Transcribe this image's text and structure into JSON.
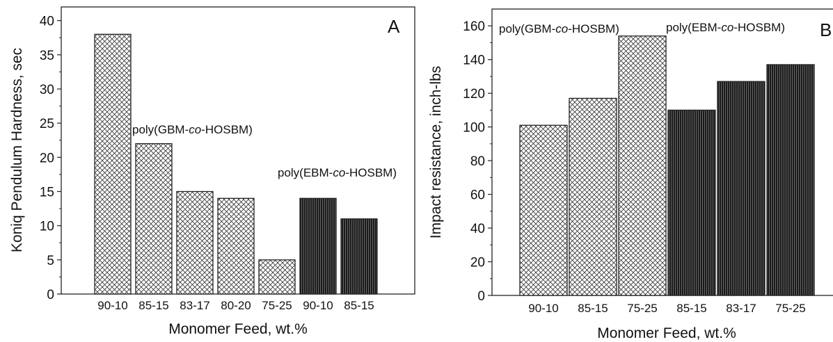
{
  "chart_data": [
    {
      "type": "bar",
      "panel_label": "A",
      "xlabel": "Monomer Feed, wt.%",
      "ylabel": "Koniq Pendulum Hardness, sec",
      "ylim": [
        0,
        42
      ],
      "yticks": [
        0,
        5,
        10,
        15,
        20,
        25,
        30,
        35,
        40
      ],
      "grid": false,
      "categories": [
        "90-10",
        "85-15",
        "83-17",
        "80-20",
        "75-25",
        "90-10",
        "85-15"
      ],
      "series": [
        {
          "name": "poly(GBM-co-HOSBM)",
          "values": [
            38,
            22,
            15,
            14,
            5,
            null,
            null
          ],
          "color": "#ffffff",
          "pattern": "crosshatch"
        },
        {
          "name": "poly(EBM-co-HOSBM)",
          "values": [
            null,
            null,
            null,
            null,
            null,
            14,
            11
          ],
          "color": "#222222",
          "pattern": "dense-vertical"
        }
      ],
      "annotations": [
        {
          "text_prefix": "poly(GBM-",
          "text_italic": "co",
          "text_suffix": "-HOSBM)"
        },
        {
          "text_prefix": "poly(EBM-",
          "text_italic": "co",
          "text_suffix": "-HOSBM)"
        }
      ]
    },
    {
      "type": "bar",
      "panel_label": "B",
      "xlabel": "Monomer Feed, wt.%",
      "ylabel": "Impact resistance, inch-lbs",
      "ylim": [
        0,
        170
      ],
      "yticks": [
        0,
        20,
        40,
        60,
        80,
        100,
        120,
        140,
        160
      ],
      "grid": false,
      "categories": [
        "90-10",
        "85-15",
        "75-25",
        "85-15",
        "83-17",
        "75-25"
      ],
      "series": [
        {
          "name": "poly(GBM-co-HOSBM)",
          "values": [
            101,
            117,
            154,
            null,
            null,
            null
          ],
          "color": "#ffffff",
          "pattern": "crosshatch"
        },
        {
          "name": "poly(EBM-co-HOSBM)",
          "values": [
            null,
            null,
            null,
            110,
            127,
            137
          ],
          "color": "#222222",
          "pattern": "dense-vertical"
        }
      ],
      "annotations": [
        {
          "text_prefix": "poly(GBM-",
          "text_italic": "co",
          "text_suffix": "-HOSBM)"
        },
        {
          "text_prefix": "poly(EBM-",
          "text_italic": "co",
          "text_suffix": "-HOSBM)"
        }
      ]
    }
  ]
}
